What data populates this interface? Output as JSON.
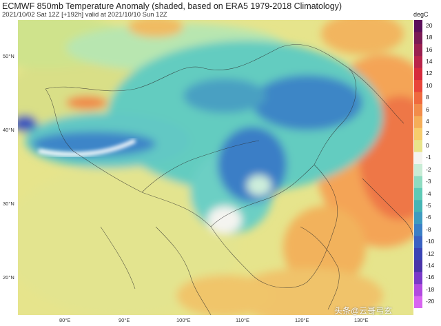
{
  "title": "ECMWF 850mb Temperature Anomaly (shaded, based on ERA5 1979-2018 Climatology)",
  "subtitle": "2021/10/02 Sat 12Z [+192h] valid at 2021/10/10 Sun 12Z",
  "colorbar": {
    "unit": "degC",
    "ticks": [
      "20",
      "18",
      "16",
      "14",
      "12",
      "10",
      "8",
      "6",
      "4",
      "2",
      "0",
      "-1",
      "-2",
      "-3",
      "-4",
      "-5",
      "-6",
      "-8",
      "-10",
      "-12",
      "-14",
      "-16",
      "-18",
      "-20"
    ],
    "colors": [
      "#5c0e5a",
      "#7a1a55",
      "#9a2050",
      "#b9244a",
      "#d62a3c",
      "#e8453a",
      "#ef6a3e",
      "#f28c4a",
      "#f5ad58",
      "#f7cc6c",
      "#e9e48a",
      "#f4f4f0",
      "#c9ecd6",
      "#8fdcc1",
      "#5fcab6",
      "#46b4b4",
      "#3f9bc0",
      "#3b7fc6",
      "#3a62c2",
      "#3a44b4",
      "#4a33a8",
      "#7a39c8",
      "#b24ae0",
      "#d865f0"
    ]
  },
  "map": {
    "lat_labels": [
      "50°N",
      "40°N",
      "30°N",
      "20°N"
    ],
    "lon_labels": [
      "80°E",
      "90°E",
      "100°E",
      "110°E",
      "120°E",
      "130°E"
    ]
  },
  "watermark": "头条@云哥弓玄"
}
